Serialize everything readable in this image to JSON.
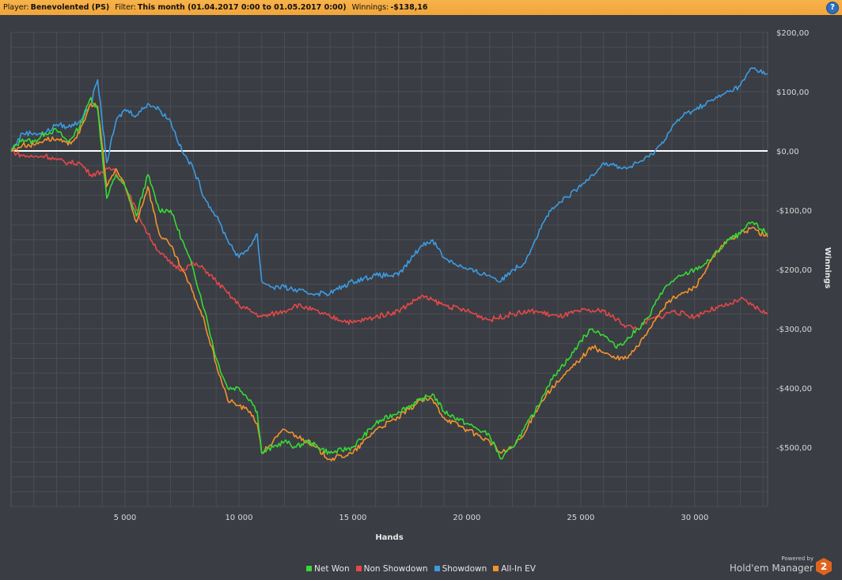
{
  "header": {
    "player_label": "Player:",
    "player_value": "Benevolented (PS)",
    "filter_label": "Filter:",
    "filter_value": "This month (01.04.2017 0:00 to 01.05.2017 0:00)",
    "winnings_label": "Winnings:",
    "winnings_value": "-$138,16",
    "help_icon": "?"
  },
  "branding": {
    "powered_by": "Powered by",
    "product": "Hold'em Manager",
    "logo_text": "2"
  },
  "colors": {
    "net_won": "#36d936",
    "non_showdown": "#e54848",
    "showdown": "#3c9be3",
    "all_in_ev": "#f5922c",
    "zero_line": "#ffffff"
  },
  "chart_data": {
    "type": "line",
    "xlabel": "Hands",
    "ylabel": "Winnings",
    "xlim": [
      0,
      33200
    ],
    "ylim": [
      -600,
      200
    ],
    "x_ticks": [
      5000,
      10000,
      15000,
      20000,
      25000,
      30000
    ],
    "x_tick_labels": [
      "5 000",
      "10 000",
      "15 000",
      "20 000",
      "25 000",
      "30 000"
    ],
    "y_ticks": [
      200,
      100,
      0,
      -100,
      -200,
      -300,
      -400,
      -500
    ],
    "y_tick_labels": [
      "$200,00",
      "$100,00",
      "$0,00",
      "-$100,00",
      "-$200,00",
      "-$300,00",
      "-$400,00",
      "-$500,00"
    ],
    "legend_position": "bottom-center",
    "grid": true,
    "series": [
      {
        "name": "Net Won",
        "color": "#36d936",
        "x": [
          0,
          500,
          1000,
          1500,
          2000,
          2500,
          3000,
          3500,
          3800,
          4200,
          4600,
          5000,
          5500,
          6000,
          6500,
          7000,
          7500,
          8000,
          8500,
          9000,
          9500,
          10000,
          10500,
          10800,
          11000,
          11500,
          12000,
          12500,
          13000,
          14000,
          15000,
          16000,
          17000,
          18000,
          18500,
          19000,
          20000,
          20500,
          21000,
          21500,
          22000,
          22500,
          23000,
          23500,
          24000,
          24500,
          25000,
          25500,
          26000,
          26500,
          27000,
          27500,
          28000,
          28500,
          29000,
          29500,
          30000,
          30500,
          31000,
          31500,
          32000,
          32500,
          33200
        ],
        "y": [
          0,
          20,
          15,
          30,
          35,
          15,
          40,
          90,
          70,
          -80,
          -40,
          -60,
          -110,
          -40,
          -100,
          -100,
          -150,
          -200,
          -270,
          -350,
          -400,
          -400,
          -420,
          -440,
          -510,
          -500,
          -490,
          -500,
          -490,
          -510,
          -500,
          -460,
          -440,
          -420,
          -410,
          -440,
          -460,
          -470,
          -480,
          -520,
          -500,
          -470,
          -440,
          -400,
          -370,
          -350,
          -320,
          -300,
          -310,
          -330,
          -320,
          -300,
          -280,
          -240,
          -220,
          -210,
          -200,
          -190,
          -170,
          -150,
          -140,
          -120,
          -140
        ]
      },
      {
        "name": "Non Showdown",
        "color": "#e54848",
        "x": [
          0,
          500,
          1000,
          1500,
          2000,
          2500,
          3000,
          3500,
          4000,
          4500,
          5000,
          5500,
          6000,
          6500,
          7000,
          7500,
          8000,
          8500,
          9000,
          9500,
          10000,
          11000,
          12000,
          12500,
          13000,
          14000,
          15000,
          16000,
          17000,
          18000,
          19000,
          20000,
          21000,
          22000,
          23000,
          24000,
          25000,
          26000,
          27000,
          27500,
          28000,
          28500,
          29000,
          30000,
          30500,
          31000,
          31500,
          32000,
          32500,
          33200
        ],
        "y": [
          0,
          -8,
          -10,
          -8,
          -15,
          -20,
          -20,
          -40,
          -35,
          -30,
          -60,
          -100,
          -140,
          -170,
          -190,
          -200,
          -190,
          -200,
          -220,
          -240,
          -260,
          -280,
          -270,
          -260,
          -265,
          -280,
          -290,
          -280,
          -270,
          -245,
          -260,
          -270,
          -285,
          -275,
          -270,
          -280,
          -270,
          -270,
          -295,
          -300,
          -285,
          -280,
          -270,
          -280,
          -270,
          -265,
          -260,
          -250,
          -260,
          -275
        ]
      },
      {
        "name": "Showdown",
        "color": "#3c9be3",
        "x": [
          0,
          500,
          1000,
          1500,
          2000,
          2500,
          3000,
          3500,
          3800,
          4200,
          4600,
          5000,
          5500,
          6000,
          6500,
          7000,
          7500,
          8000,
          8500,
          9000,
          9500,
          10000,
          10500,
          10800,
          11000,
          11500,
          12000,
          13000,
          14000,
          15000,
          16000,
          17000,
          18000,
          18500,
          19000,
          20000,
          21000,
          21500,
          22000,
          22500,
          23000,
          23500,
          24000,
          25000,
          25500,
          26000,
          26500,
          27000,
          27500,
          28000,
          28500,
          29000,
          29500,
          30000,
          30500,
          31000,
          31500,
          32000,
          32500,
          33200
        ],
        "y": [
          0,
          30,
          30,
          30,
          45,
          40,
          50,
          80,
          120,
          -20,
          50,
          70,
          60,
          80,
          70,
          50,
          0,
          -30,
          -80,
          -110,
          -150,
          -180,
          -160,
          -140,
          -220,
          -230,
          -230,
          -240,
          -240,
          -220,
          -210,
          -210,
          -160,
          -150,
          -180,
          -200,
          -210,
          -220,
          -200,
          -190,
          -150,
          -110,
          -90,
          -60,
          -40,
          -20,
          -25,
          -30,
          -20,
          -10,
          10,
          40,
          60,
          70,
          80,
          90,
          100,
          110,
          140,
          130
        ]
      },
      {
        "name": "All-In EV",
        "color": "#f5922c",
        "x": [
          0,
          500,
          1000,
          1500,
          2000,
          2500,
          3000,
          3500,
          3800,
          4200,
          4600,
          5000,
          5500,
          6000,
          6500,
          7000,
          7500,
          8000,
          8500,
          9000,
          9500,
          10000,
          10500,
          10800,
          11000,
          11500,
          12000,
          12500,
          13000,
          14000,
          15000,
          16000,
          17000,
          18000,
          18500,
          19000,
          20000,
          20500,
          21000,
          21500,
          22000,
          22500,
          23000,
          23500,
          24000,
          24500,
          25000,
          25500,
          26000,
          26500,
          27000,
          27500,
          28000,
          28500,
          29000,
          29500,
          30000,
          30500,
          31000,
          31500,
          32000,
          32500,
          33200
        ],
        "y": [
          0,
          10,
          10,
          20,
          20,
          10,
          30,
          80,
          75,
          -60,
          -30,
          -60,
          -120,
          -60,
          -140,
          -160,
          -200,
          -240,
          -290,
          -360,
          -420,
          -430,
          -440,
          -460,
          -510,
          -490,
          -470,
          -480,
          -490,
          -520,
          -510,
          -470,
          -450,
          -420,
          -420,
          -450,
          -470,
          -480,
          -490,
          -510,
          -500,
          -480,
          -440,
          -410,
          -390,
          -370,
          -350,
          -330,
          -340,
          -350,
          -350,
          -330,
          -300,
          -270,
          -250,
          -240,
          -230,
          -200,
          -170,
          -150,
          -140,
          -130,
          -145
        ]
      }
    ]
  }
}
